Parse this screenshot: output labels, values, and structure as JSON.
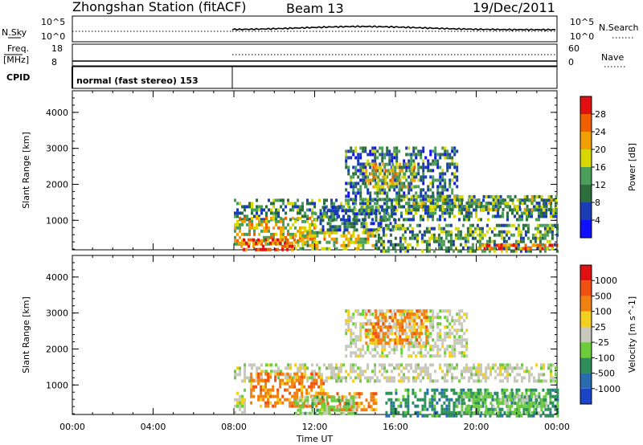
{
  "header": {
    "station": "Zhongshan Station (fitACF)",
    "beam": "Beam 13",
    "date": "19/Dec/2011"
  },
  "strip1": {
    "left_label": "N.Sky",
    "left_ticks": [
      "10^5",
      "10^0"
    ],
    "right_ticks": [
      "10^5",
      "10^0"
    ],
    "right_label": "N.Search"
  },
  "strip2": {
    "left_label_1": "Freq.",
    "left_label_2": "[MHz]",
    "left_ticks": [
      "18",
      "8"
    ],
    "right_ticks": [
      "60",
      "0"
    ],
    "right_label": "Nave"
  },
  "cpid": {
    "label": "CPID",
    "mode": "normal (fast stereo) 153"
  },
  "chart_data": [
    {
      "type": "heatmap",
      "quantity": "Power",
      "ylabel": "Slant Range [km]",
      "ylim": [
        180,
        4600
      ],
      "yticks": [
        1000,
        2000,
        3000,
        4000
      ],
      "xlim": [
        0,
        24
      ],
      "colorbar": {
        "label": "Power [dB]",
        "ticks": [
          "4",
          "8",
          "12",
          "16",
          "20",
          "24",
          "28"
        ],
        "levels": [
          {
            "lo": 0,
            "hi": 4,
            "color": "#1010ff"
          },
          {
            "lo": 4,
            "hi": 8,
            "color": "#1a3cb4"
          },
          {
            "lo": 8,
            "hi": 12,
            "color": "#2c6e3c"
          },
          {
            "lo": 12,
            "hi": 16,
            "color": "#4a9e5a"
          },
          {
            "lo": 16,
            "hi": 20,
            "color": "#d8d800"
          },
          {
            "lo": 20,
            "hi": 24,
            "color": "#f0a000"
          },
          {
            "lo": 24,
            "hi": 28,
            "color": "#f06000"
          },
          {
            "lo": 28,
            "hi": 32,
            "color": "#e01010"
          }
        ]
      },
      "regions": [
        {
          "t0": 8.0,
          "t1": 24.0,
          "r0": 1050,
          "r1": 1600,
          "level": 0.35
        },
        {
          "t0": 8.0,
          "t1": 12.0,
          "r0": 300,
          "r1": 1100,
          "level": 0.6
        },
        {
          "t0": 8.2,
          "t1": 11.0,
          "r0": 180,
          "r1": 500,
          "level": 0.85
        },
        {
          "t0": 11.0,
          "t1": 15.0,
          "r0": 180,
          "r1": 700,
          "level": 0.55
        },
        {
          "t0": 12.0,
          "t1": 16.0,
          "r0": 700,
          "r1": 1400,
          "level": 0.3
        },
        {
          "t0": 13.5,
          "t1": 19.0,
          "r0": 1600,
          "r1": 3050,
          "level": 0.3
        },
        {
          "t0": 14.5,
          "t1": 17.0,
          "r0": 1900,
          "r1": 2600,
          "level": 0.6
        },
        {
          "t0": 16.5,
          "t1": 24.0,
          "r0": 1300,
          "r1": 1700,
          "level": 0.45
        },
        {
          "t0": 15.0,
          "t1": 24.0,
          "r0": 180,
          "r1": 900,
          "level": 0.4
        },
        {
          "t0": 20.0,
          "t1": 24.0,
          "r0": 180,
          "r1": 350,
          "level": 0.8
        }
      ]
    },
    {
      "type": "heatmap",
      "quantity": "Velocity",
      "ylabel": "Slant Range [km]",
      "ylim": [
        180,
        4600
      ],
      "yticks": [
        1000,
        2000,
        3000,
        4000
      ],
      "xlim": [
        0,
        24
      ],
      "xticks": [
        "00:00",
        "04:00",
        "08:00",
        "12:00",
        "16:00",
        "20:00",
        "00:00"
      ],
      "xlabel": "Time UT",
      "colorbar": {
        "label": "Velocity [m s^-1]",
        "ticks": [
          "1000",
          "500",
          "100",
          "25",
          "-25",
          "-100",
          "-500",
          "-1000"
        ],
        "levels": [
          {
            "lo": 1000,
            "hi": 1500,
            "color": "#1c44c8"
          },
          {
            "lo": 500,
            "hi": 1000,
            "color": "#2a6cb0"
          },
          {
            "lo": 100,
            "hi": 500,
            "color": "#2f8f5a"
          },
          {
            "lo": 25,
            "hi": 100,
            "color": "#6ccc3c"
          },
          {
            "lo": -25,
            "hi": 25,
            "color": "#c8c8bc"
          },
          {
            "lo": -100,
            "hi": -25,
            "color": "#f2d020"
          },
          {
            "lo": -500,
            "hi": -100,
            "color": "#f08010"
          },
          {
            "lo": -1000,
            "hi": -500,
            "color": "#f05010"
          },
          {
            "lo": -1500,
            "hi": -1000,
            "color": "#e01010"
          }
        ]
      },
      "regions": [
        {
          "t0": 8.0,
          "t1": 24.0,
          "r0": 1150,
          "r1": 1600,
          "level": 4
        },
        {
          "t0": 8.8,
          "t1": 12.5,
          "r0": 400,
          "r1": 1350,
          "level": 6
        },
        {
          "t0": 12.0,
          "t1": 15.0,
          "r0": 350,
          "r1": 800,
          "level": 6
        },
        {
          "t0": 11.0,
          "t1": 14.0,
          "r0": 200,
          "r1": 700,
          "level": 3
        },
        {
          "t0": 13.5,
          "t1": 19.5,
          "r0": 1800,
          "r1": 3100,
          "level": 4
        },
        {
          "t0": 14.5,
          "t1": 17.5,
          "r0": 2200,
          "r1": 3100,
          "level": 6
        },
        {
          "t0": 15.5,
          "t1": 24.0,
          "r0": 180,
          "r1": 900,
          "level": 2
        },
        {
          "t0": 19.0,
          "t1": 23.5,
          "r0": 180,
          "r1": 800,
          "level": 3
        },
        {
          "t0": 8.0,
          "t1": 8.5,
          "r0": 200,
          "r1": 900,
          "level": 4
        }
      ]
    }
  ]
}
